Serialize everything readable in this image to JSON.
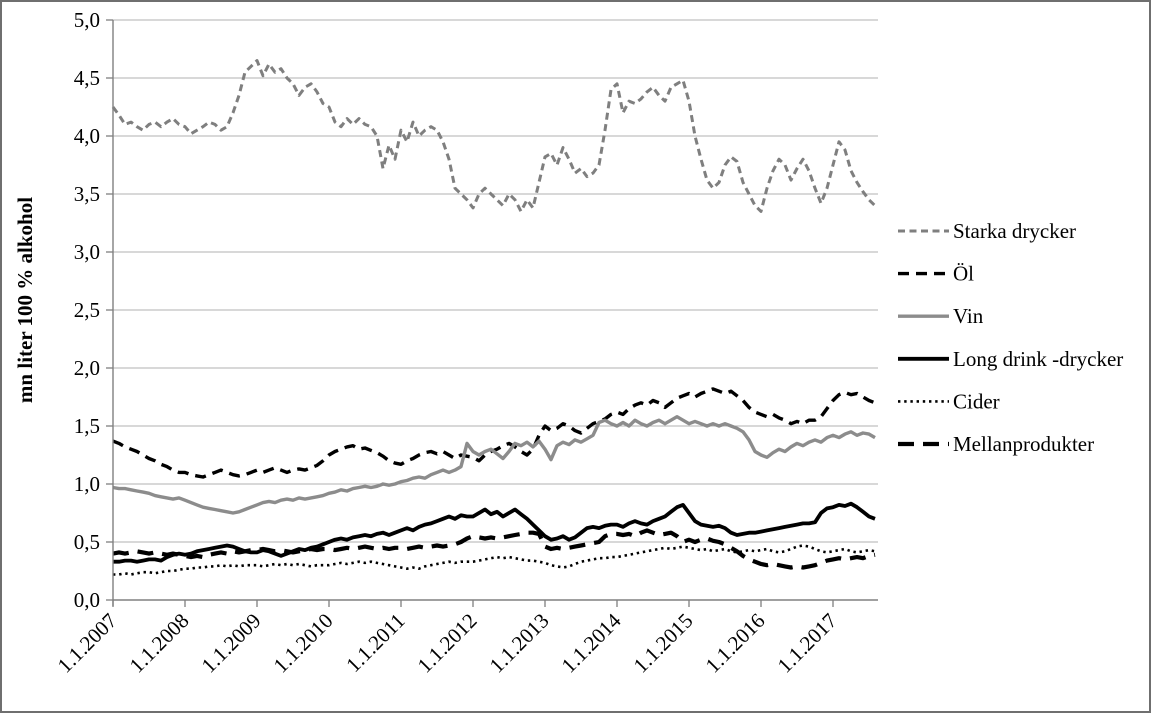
{
  "chart_data": {
    "type": "line",
    "title": "",
    "ylabel": "mn liter 100 % alkohol",
    "ylim": [
      0.0,
      5.0
    ],
    "y_tick_step": 0.5,
    "y_tick_labels": [
      "0,0",
      "0,5",
      "1,0",
      "1,5",
      "2,0",
      "2,5",
      "3,0",
      "3,5",
      "4,0",
      "4,5",
      "5,0"
    ],
    "x_axis": {
      "tick_labels": [
        "1.1.2007",
        "1.1.2008",
        "1.1.2009",
        "1.1.2010",
        "1.1.2011",
        "1.1.2012",
        "1.1.2013",
        "1.1.2014",
        "1.1.2015",
        "1.1.2016",
        "1.1.2017"
      ],
      "months_per_tick": 12,
      "total_months": 128,
      "label_rotation_deg": -45
    },
    "grid": true,
    "legend_position": "right",
    "colors": {
      "gray_line": "#7f7f7f",
      "gray_line_light": "#8c8c8c",
      "black_line": "#000000",
      "gridline": "#b0b0b0",
      "axis": "#808080",
      "text": "#000000"
    },
    "series": [
      {
        "id": "starka-drycker",
        "name": "Starka drycker",
        "color": "#7f7f7f",
        "dash": "7 4.5",
        "width": 3,
        "values": [
          4.25,
          4.18,
          4.1,
          4.12,
          4.08,
          4.05,
          4.1,
          4.12,
          4.08,
          4.12,
          4.15,
          4.1,
          4.08,
          4.02,
          4.05,
          4.08,
          4.12,
          4.1,
          4.05,
          4.08,
          4.2,
          4.35,
          4.55,
          4.6,
          4.65,
          4.52,
          4.62,
          4.55,
          4.58,
          4.5,
          4.45,
          4.35,
          4.42,
          4.45,
          4.38,
          4.28,
          4.25,
          4.12,
          4.08,
          4.15,
          4.1,
          4.15,
          4.1,
          4.08,
          4.0,
          3.72,
          3.92,
          3.8,
          4.05,
          3.95,
          4.12,
          4.0,
          4.05,
          4.08,
          4.05,
          3.95,
          3.8,
          3.55,
          3.5,
          3.45,
          3.38,
          3.5,
          3.55,
          3.5,
          3.45,
          3.4,
          3.5,
          3.45,
          3.35,
          3.45,
          3.38,
          3.6,
          3.82,
          3.85,
          3.75,
          3.9,
          3.8,
          3.68,
          3.72,
          3.65,
          3.68,
          3.75,
          4.05,
          4.4,
          4.45,
          4.2,
          4.3,
          4.28,
          4.32,
          4.38,
          4.42,
          4.35,
          4.3,
          4.42,
          4.45,
          4.48,
          4.3,
          4.0,
          3.8,
          3.62,
          3.55,
          3.6,
          3.75,
          3.82,
          3.78,
          3.6,
          3.5,
          3.4,
          3.35,
          3.55,
          3.7,
          3.8,
          3.75,
          3.62,
          3.72,
          3.8,
          3.7,
          3.55,
          3.42,
          3.55,
          3.75,
          3.95,
          3.88,
          3.7,
          3.6,
          3.52,
          3.45,
          3.4
        ]
      },
      {
        "id": "ol",
        "name": "Öl",
        "color": "#000000",
        "dash": "11 7",
        "width": 3.4,
        "values": [
          1.37,
          1.35,
          1.32,
          1.3,
          1.28,
          1.25,
          1.22,
          1.2,
          1.17,
          1.15,
          1.12,
          1.1,
          1.1,
          1.08,
          1.07,
          1.06,
          1.08,
          1.1,
          1.12,
          1.1,
          1.08,
          1.07,
          1.08,
          1.1,
          1.12,
          1.1,
          1.12,
          1.14,
          1.12,
          1.1,
          1.12,
          1.13,
          1.12,
          1.14,
          1.16,
          1.2,
          1.25,
          1.28,
          1.3,
          1.32,
          1.33,
          1.3,
          1.31,
          1.29,
          1.27,
          1.24,
          1.2,
          1.18,
          1.17,
          1.2,
          1.22,
          1.25,
          1.27,
          1.28,
          1.26,
          1.28,
          1.25,
          1.22,
          1.25,
          1.24,
          1.23,
          1.2,
          1.25,
          1.28,
          1.3,
          1.33,
          1.35,
          1.32,
          1.28,
          1.25,
          1.3,
          1.42,
          1.5,
          1.46,
          1.48,
          1.52,
          1.5,
          1.46,
          1.44,
          1.48,
          1.52,
          1.54,
          1.56,
          1.6,
          1.62,
          1.6,
          1.65,
          1.68,
          1.7,
          1.68,
          1.72,
          1.7,
          1.66,
          1.7,
          1.74,
          1.76,
          1.78,
          1.75,
          1.78,
          1.8,
          1.82,
          1.8,
          1.78,
          1.8,
          1.76,
          1.72,
          1.66,
          1.62,
          1.6,
          1.58,
          1.6,
          1.57,
          1.55,
          1.52,
          1.54,
          1.52,
          1.55,
          1.55,
          1.58,
          1.65,
          1.72,
          1.77,
          1.79,
          1.77,
          1.78,
          1.75,
          1.72,
          1.7
        ]
      },
      {
        "id": "vin",
        "name": "Vin",
        "color": "#8c8c8c",
        "dash": "",
        "width": 3.4,
        "values": [
          0.97,
          0.96,
          0.96,
          0.95,
          0.94,
          0.93,
          0.92,
          0.9,
          0.89,
          0.88,
          0.87,
          0.88,
          0.86,
          0.84,
          0.82,
          0.8,
          0.79,
          0.78,
          0.77,
          0.76,
          0.75,
          0.76,
          0.78,
          0.8,
          0.82,
          0.84,
          0.85,
          0.84,
          0.86,
          0.87,
          0.86,
          0.88,
          0.87,
          0.88,
          0.89,
          0.9,
          0.92,
          0.93,
          0.95,
          0.94,
          0.96,
          0.97,
          0.98,
          0.97,
          0.98,
          1.0,
          0.99,
          1.0,
          1.02,
          1.03,
          1.05,
          1.06,
          1.05,
          1.08,
          1.1,
          1.12,
          1.1,
          1.12,
          1.15,
          1.35,
          1.28,
          1.25,
          1.28,
          1.3,
          1.26,
          1.22,
          1.28,
          1.35,
          1.33,
          1.36,
          1.32,
          1.37,
          1.3,
          1.21,
          1.33,
          1.36,
          1.34,
          1.38,
          1.36,
          1.39,
          1.42,
          1.53,
          1.55,
          1.52,
          1.5,
          1.53,
          1.5,
          1.55,
          1.52,
          1.5,
          1.53,
          1.55,
          1.52,
          1.55,
          1.58,
          1.55,
          1.52,
          1.54,
          1.52,
          1.5,
          1.52,
          1.5,
          1.52,
          1.5,
          1.48,
          1.45,
          1.38,
          1.28,
          1.25,
          1.23,
          1.27,
          1.3,
          1.28,
          1.32,
          1.35,
          1.33,
          1.36,
          1.38,
          1.36,
          1.4,
          1.42,
          1.4,
          1.43,
          1.45,
          1.42,
          1.44,
          1.43,
          1.4
        ]
      },
      {
        "id": "long-drink-drycker",
        "name": "Long drink -drycker",
        "color": "#000000",
        "dash": "",
        "width": 3.8,
        "values": [
          0.33,
          0.33,
          0.34,
          0.34,
          0.33,
          0.34,
          0.35,
          0.35,
          0.34,
          0.37,
          0.39,
          0.4,
          0.39,
          0.4,
          0.42,
          0.43,
          0.44,
          0.45,
          0.46,
          0.47,
          0.46,
          0.44,
          0.42,
          0.41,
          0.41,
          0.43,
          0.42,
          0.4,
          0.38,
          0.4,
          0.42,
          0.44,
          0.43,
          0.45,
          0.46,
          0.48,
          0.5,
          0.52,
          0.53,
          0.52,
          0.54,
          0.55,
          0.56,
          0.55,
          0.57,
          0.58,
          0.56,
          0.58,
          0.6,
          0.62,
          0.6,
          0.63,
          0.65,
          0.66,
          0.68,
          0.7,
          0.72,
          0.7,
          0.73,
          0.72,
          0.72,
          0.75,
          0.78,
          0.74,
          0.76,
          0.72,
          0.75,
          0.78,
          0.74,
          0.7,
          0.65,
          0.6,
          0.55,
          0.52,
          0.53,
          0.55,
          0.52,
          0.54,
          0.58,
          0.62,
          0.63,
          0.62,
          0.64,
          0.65,
          0.65,
          0.63,
          0.66,
          0.68,
          0.66,
          0.65,
          0.68,
          0.7,
          0.72,
          0.76,
          0.8,
          0.82,
          0.75,
          0.68,
          0.65,
          0.64,
          0.63,
          0.64,
          0.62,
          0.58,
          0.56,
          0.57,
          0.58,
          0.58,
          0.59,
          0.6,
          0.61,
          0.62,
          0.63,
          0.64,
          0.65,
          0.66,
          0.66,
          0.67,
          0.75,
          0.79,
          0.8,
          0.82,
          0.81,
          0.83,
          0.8,
          0.76,
          0.72,
          0.7
        ]
      },
      {
        "id": "cider",
        "name": "Cider",
        "color": "#000000",
        "dash": "2.4 3.8",
        "width": 2.6,
        "values": [
          0.22,
          0.22,
          0.23,
          0.22,
          0.23,
          0.24,
          0.24,
          0.23,
          0.24,
          0.25,
          0.25,
          0.26,
          0.27,
          0.27,
          0.28,
          0.28,
          0.29,
          0.29,
          0.3,
          0.29,
          0.3,
          0.29,
          0.3,
          0.3,
          0.3,
          0.29,
          0.3,
          0.31,
          0.3,
          0.31,
          0.3,
          0.31,
          0.3,
          0.29,
          0.3,
          0.3,
          0.3,
          0.31,
          0.32,
          0.31,
          0.32,
          0.33,
          0.32,
          0.33,
          0.32,
          0.31,
          0.3,
          0.29,
          0.28,
          0.27,
          0.28,
          0.27,
          0.29,
          0.3,
          0.31,
          0.32,
          0.33,
          0.32,
          0.33,
          0.33,
          0.33,
          0.34,
          0.35,
          0.36,
          0.37,
          0.36,
          0.37,
          0.36,
          0.35,
          0.34,
          0.34,
          0.33,
          0.32,
          0.3,
          0.29,
          0.28,
          0.29,
          0.31,
          0.33,
          0.34,
          0.35,
          0.36,
          0.36,
          0.37,
          0.37,
          0.38,
          0.39,
          0.4,
          0.41,
          0.42,
          0.43,
          0.44,
          0.45,
          0.44,
          0.45,
          0.46,
          0.45,
          0.44,
          0.43,
          0.44,
          0.42,
          0.43,
          0.44,
          0.42,
          0.41,
          0.42,
          0.43,
          0.42,
          0.43,
          0.44,
          0.42,
          0.41,
          0.42,
          0.44,
          0.46,
          0.47,
          0.46,
          0.44,
          0.42,
          0.41,
          0.42,
          0.43,
          0.44,
          0.42,
          0.41,
          0.42,
          0.43,
          0.42
        ]
      },
      {
        "id": "mellanprodukter",
        "name": "Mellanprodukter",
        "color": "#000000",
        "dash": "16 9",
        "width": 4.2,
        "values": [
          0.4,
          0.41,
          0.4,
          0.41,
          0.42,
          0.41,
          0.4,
          0.41,
          0.4,
          0.39,
          0.4,
          0.39,
          0.38,
          0.37,
          0.38,
          0.37,
          0.39,
          0.4,
          0.41,
          0.4,
          0.42,
          0.41,
          0.42,
          0.43,
          0.43,
          0.44,
          0.43,
          0.42,
          0.43,
          0.42,
          0.41,
          0.42,
          0.43,
          0.44,
          0.43,
          0.44,
          0.44,
          0.43,
          0.44,
          0.45,
          0.44,
          0.45,
          0.46,
          0.45,
          0.44,
          0.45,
          0.44,
          0.45,
          0.45,
          0.44,
          0.45,
          0.46,
          0.45,
          0.46,
          0.47,
          0.46,
          0.47,
          0.48,
          0.5,
          0.53,
          0.55,
          0.54,
          0.53,
          0.54,
          0.53,
          0.54,
          0.55,
          0.56,
          0.57,
          0.58,
          0.58,
          0.57,
          0.46,
          0.44,
          0.45,
          0.44,
          0.45,
          0.46,
          0.47,
          0.48,
          0.49,
          0.5,
          0.55,
          0.57,
          0.57,
          0.56,
          0.57,
          0.55,
          0.58,
          0.6,
          0.58,
          0.56,
          0.57,
          0.58,
          0.55,
          0.5,
          0.52,
          0.5,
          0.52,
          0.53,
          0.51,
          0.5,
          0.48,
          0.45,
          0.42,
          0.38,
          0.35,
          0.33,
          0.31,
          0.3,
          0.31,
          0.3,
          0.29,
          0.28,
          0.29,
          0.28,
          0.29,
          0.3,
          0.32,
          0.34,
          0.35,
          0.36,
          0.35,
          0.36,
          0.37,
          0.36,
          0.38,
          0.39
        ]
      }
    ]
  }
}
